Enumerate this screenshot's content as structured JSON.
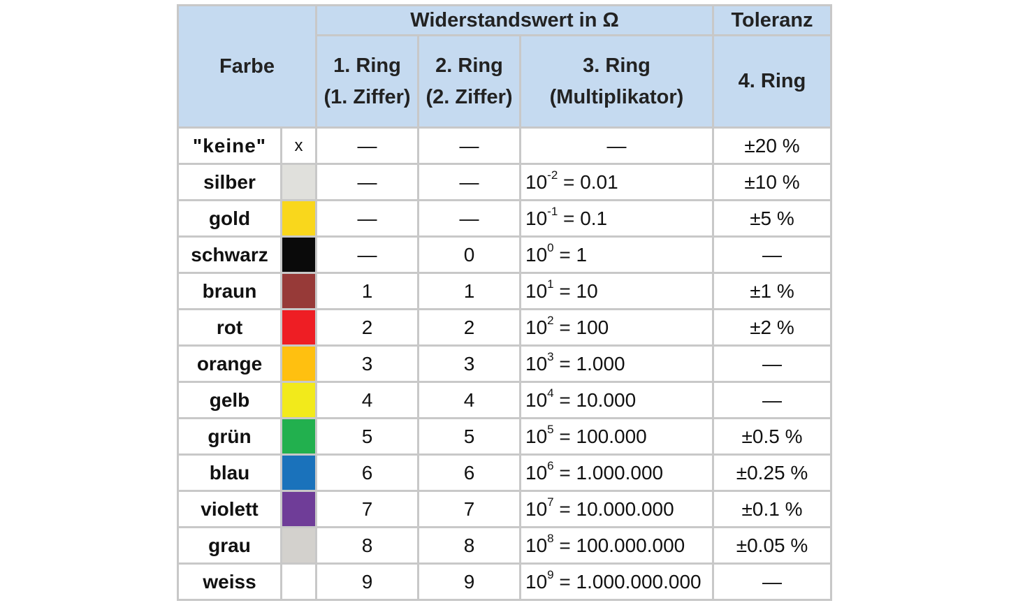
{
  "header": {
    "farbe": "Farbe",
    "widerstandswert": "Widerstandswert in Ω",
    "toleranz": "Toleranz",
    "ring1_line1": "1. Ring",
    "ring1_line2": "(1. Ziffer)",
    "ring2_line1": "2. Ring",
    "ring2_line2": "(2. Ziffer)",
    "ring3_line1": "3. Ring",
    "ring3_line2": "(Multiplikator)",
    "ring4": "4. Ring"
  },
  "rows": [
    {
      "name": "\"keine\"",
      "swatch_text": "x",
      "color": "",
      "ring1": "—",
      "ring2": "—",
      "mult_base": "",
      "mult_exp": "",
      "mult_value": "—",
      "tolerance": "±20 %"
    },
    {
      "name": "silber",
      "swatch_text": "",
      "color": "#e0e0dc",
      "ring1": "—",
      "ring2": "—",
      "mult_base": "10",
      "mult_exp": "-2",
      "mult_value": " = 0.01",
      "tolerance": "±10 %"
    },
    {
      "name": "gold",
      "swatch_text": "",
      "color": "#f9d71c",
      "ring1": "—",
      "ring2": "—",
      "mult_base": "10",
      "mult_exp": "-1",
      "mult_value": " = 0.1",
      "tolerance": "±5 %"
    },
    {
      "name": "schwarz",
      "swatch_text": "",
      "color": "#0a0a0a",
      "ring1": "—",
      "ring2": "0",
      "mult_base": "10",
      "mult_exp": "0",
      "mult_value": " = 1",
      "tolerance": "—"
    },
    {
      "name": "braun",
      "swatch_text": "",
      "color": "#973a38",
      "ring1": "1",
      "ring2": "1",
      "mult_base": "10",
      "mult_exp": "1",
      "mult_value": " = 10",
      "tolerance": "±1 %"
    },
    {
      "name": "rot",
      "swatch_text": "",
      "color": "#ee1e24",
      "ring1": "2",
      "ring2": "2",
      "mult_base": "10",
      "mult_exp": "2",
      "mult_value": " = 100",
      "tolerance": "±2 %"
    },
    {
      "name": "orange",
      "swatch_text": "",
      "color": "#ffc010",
      "ring1": "3",
      "ring2": "3",
      "mult_base": "10",
      "mult_exp": "3",
      "mult_value": " = 1.000",
      "tolerance": "—"
    },
    {
      "name": "gelb",
      "swatch_text": "",
      "color": "#f2ea1b",
      "ring1": "4",
      "ring2": "4",
      "mult_base": "10",
      "mult_exp": "4",
      "mult_value": " = 10.000",
      "tolerance": "—"
    },
    {
      "name": "grün",
      "swatch_text": "",
      "color": "#22b04e",
      "ring1": "5",
      "ring2": "5",
      "mult_base": "10",
      "mult_exp": "5",
      "mult_value": " = 100.000",
      "tolerance": "±0.5 %"
    },
    {
      "name": "blau",
      "swatch_text": "",
      "color": "#1a72bb",
      "ring1": "6",
      "ring2": "6",
      "mult_base": "10",
      "mult_exp": "6",
      "mult_value": " = 1.000.000",
      "tolerance": "±0.25 %"
    },
    {
      "name": "violett",
      "swatch_text": "",
      "color": "#6f3d98",
      "ring1": "7",
      "ring2": "7",
      "mult_base": "10",
      "mult_exp": "7",
      "mult_value": " = 10.000.000",
      "tolerance": "±0.1 %"
    },
    {
      "name": "grau",
      "swatch_text": "",
      "color": "#d3d1cd",
      "ring1": "8",
      "ring2": "8",
      "mult_base": "10",
      "mult_exp": "8",
      "mult_value": " = 100.000.000",
      "tolerance": "±0.05 %"
    },
    {
      "name": "weiss",
      "swatch_text": "",
      "color": "#ffffff",
      "ring1": "9",
      "ring2": "9",
      "mult_base": "10",
      "mult_exp": "9",
      "mult_value": " = 1.000.000.000",
      "tolerance": "—"
    }
  ]
}
